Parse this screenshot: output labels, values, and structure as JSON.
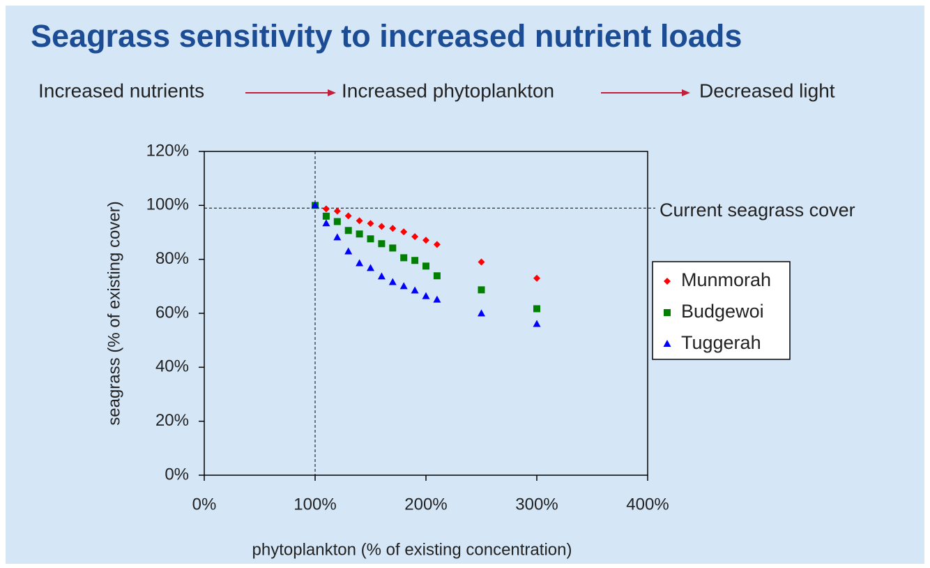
{
  "chart_data": {
    "type": "scatter",
    "title": "Seagrass sensitivity to increased nutrient loads",
    "flow": [
      "Increased nutrients",
      "Increased phytoplankton",
      "Decreased light"
    ],
    "x_label": "phytoplankton (% of existing concentration)",
    "y_label": "seagrass (% of existing cover)",
    "annotation": "Current seagrass cover",
    "reference_lines": {
      "x": 100,
      "y": 99
    },
    "x": [
      100,
      110,
      120,
      130,
      140,
      150,
      160,
      170,
      180,
      190,
      200,
      210,
      250,
      300
    ],
    "series": [
      {
        "name": "Munmorah",
        "color": "#ff0000",
        "marker": "diamond",
        "values": [
          100,
          98.7,
          97.9,
          96.1,
          94.3,
          93.3,
          92.2,
          91.5,
          90.2,
          88.4,
          87.1,
          85.5,
          79,
          73
        ]
      },
      {
        "name": "Budgewoi",
        "color": "#008000",
        "marker": "square",
        "values": [
          100,
          96,
          94,
          90.7,
          89.4,
          87.6,
          85.8,
          84.2,
          80.6,
          79.6,
          77.5,
          73.9,
          68.7,
          61.7
        ]
      },
      {
        "name": "Tuggerah",
        "color": "#0000ff",
        "marker": "triangle",
        "values": [
          100,
          93.3,
          88.1,
          82.9,
          78.5,
          76.7,
          73.6,
          71.5,
          70,
          68.4,
          66.3,
          65,
          59.9,
          56
        ]
      }
    ],
    "xlim": [
      0,
      400
    ],
    "ylim": [
      0,
      120
    ],
    "xticks": [
      {
        "value": 0,
        "label": "0%"
      },
      {
        "value": 100,
        "label": "100%"
      },
      {
        "value": 200,
        "label": "200%"
      },
      {
        "value": 300,
        "label": "300%"
      },
      {
        "value": 400,
        "label": "400%"
      }
    ],
    "yticks": [
      {
        "value": 0,
        "label": "0%"
      },
      {
        "value": 20,
        "label": "20%"
      },
      {
        "value": 40,
        "label": "40%"
      },
      {
        "value": 60,
        "label": "60%"
      },
      {
        "value": 80,
        "label": "80%"
      },
      {
        "value": 100,
        "label": "100%"
      },
      {
        "value": 120,
        "label": "120%"
      }
    ],
    "legend": "right"
  }
}
